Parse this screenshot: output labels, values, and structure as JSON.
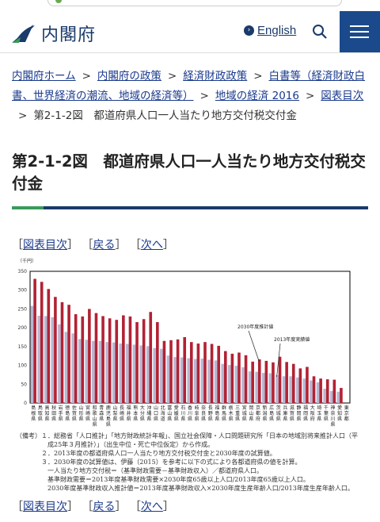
{
  "header": {
    "logo_text": "内閣府",
    "lang_label": "English"
  },
  "breadcrumb": {
    "items": [
      "内閣府ホーム",
      "内閣府の政策",
      "経済財政政策",
      "白書等（経済財政白書、世界経済の潮流、地域の経済等）",
      "地域の経済 2016",
      "図表目次"
    ],
    "current": "第2-1-2図　都道府県人口一人当たり地方交付税交付金",
    "sep": ">"
  },
  "page_title": "第2-1-2図　都道府県人口一人当たり地方交付税交付金",
  "nav": {
    "toc": "図表目次",
    "back": "戻る",
    "next": "次へ",
    "lb": "［",
    "rb": "］"
  },
  "chart_data": {
    "type": "bar",
    "unit_label": "（千円）",
    "ylim": [
      0,
      350
    ],
    "yticks": [
      "350",
      "300",
      "250",
      "200",
      "150",
      "100",
      "50",
      "0"
    ],
    "categories": [
      "島根県",
      "鳥取県",
      "高知県",
      "秋田県",
      "岩手県",
      "徳島県",
      "佐賀県",
      "山形県",
      "宮崎県",
      "和歌山県",
      "青森県",
      "鹿児島県",
      "山梨県",
      "長崎県",
      "福井県",
      "熊本県",
      "大分県",
      "沖縄県",
      "山口県",
      "北海道",
      "富山県",
      "愛媛県",
      "石川県",
      "香川県",
      "岐阜県",
      "奈良県",
      "長野県",
      "福島県",
      "群馬県",
      "栃木県",
      "三重県",
      "宮城県",
      "岡山県",
      "京都府",
      "新潟県",
      "広島県",
      "茨城県",
      "兵庫県",
      "滋賀県",
      "静岡県",
      "福岡県",
      "大阪府",
      "埼玉県",
      "千葉県",
      "神奈川県",
      "愛知県",
      "東京都"
    ],
    "series": [
      {
        "name": "2013年度実績値",
        "values": [
          258,
          232,
          231,
          228,
          209,
          189,
          185,
          170,
          168,
          165,
          165,
          162,
          161,
          158,
          157,
          155,
          153,
          151,
          146,
          144,
          126,
          122,
          121,
          119,
          117,
          118,
          115,
          113,
          104,
          101,
          99,
          95,
          84,
          83,
          80,
          79,
          74,
          71,
          71,
          68,
          65,
          60,
          55,
          38,
          32,
          30,
          0
        ],
        "color": "#b7b7d2"
      },
      {
        "name": "2030年度推計値",
        "values": [
          330,
          322,
          303,
          282,
          268,
          261,
          236,
          230,
          250,
          239,
          231,
          225,
          221,
          233,
          230,
          215,
          223,
          242,
          215,
          165,
          167,
          169,
          175,
          162,
          158,
          162,
          157,
          152,
          138,
          131,
          134,
          127,
          110,
          116,
          112,
          108,
          123,
          109,
          104,
          92,
          96,
          71,
          65,
          63,
          62,
          40,
          0
        ],
        "color": "#b22234"
      }
    ],
    "annotations": [
      "2030年度推計値",
      "2013年度実績値"
    ]
  },
  "notes": {
    "lines": [
      "（備考）１．総務省「人口推計」「地方財政統計年報」、国立社会保障・人口問題研究所「日本の地域別将来推計人口（平",
      "　　　　　成25年３月推計）」（出生中位・死亡中位仮定）から作成。",
      "　　　　２．2013年度の都道府県人口一人当たり地方交付税交付金と2030年度の試算値。",
      "　　　　３．2030年度の試算値は、伊藤（2015）を参考に以下の式により各都道府県の値を計算。",
      "　　　　　一人当たり地方交付税＝（基準財政需要－基準財政収入）／都道府県人口。",
      "　　　　　基準財政需要＝2013年度基準財政需要×2030年度65歳以上人口/2013年度65歳以上人口。",
      "　　　　　2030年度基準財政収入推計値＝2013年度基準財政収入×2030年度生産年齢人口/2013年度生産年齢人口。"
    ]
  },
  "colors": {
    "brand": "#1a3a6b",
    "link": "#1a3a8c",
    "accent_green": "#3a9b5a"
  }
}
